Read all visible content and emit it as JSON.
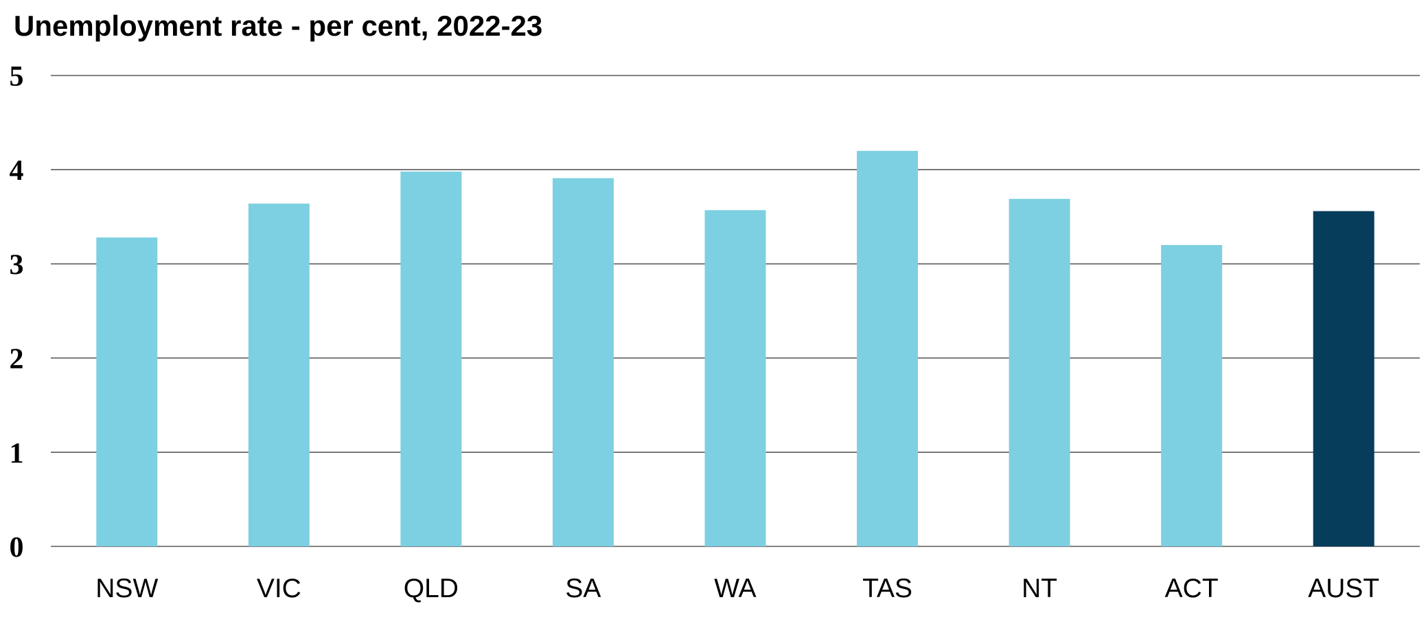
{
  "chart_data": {
    "type": "bar",
    "title": "Unemployment rate - per cent, 2022-23",
    "categories": [
      "NSW",
      "VIC",
      "QLD",
      "SA",
      "WA",
      "TAS",
      "NT",
      "ACT",
      "AUST"
    ],
    "series": [
      {
        "values": [
          3.28,
          3.64,
          3.98,
          3.91,
          3.57,
          4.2,
          3.69,
          3.2,
          3.56
        ]
      }
    ],
    "ylim": [
      0,
      5
    ],
    "yticks": [
      "0",
      "1",
      "2",
      "3",
      "4",
      "5"
    ],
    "grid": true,
    "legend": "none",
    "colors": {
      "bar": "#7dd0e1",
      "highlight": "#063d5b",
      "gridline": "#595959"
    },
    "highlight_category": "AUST"
  }
}
